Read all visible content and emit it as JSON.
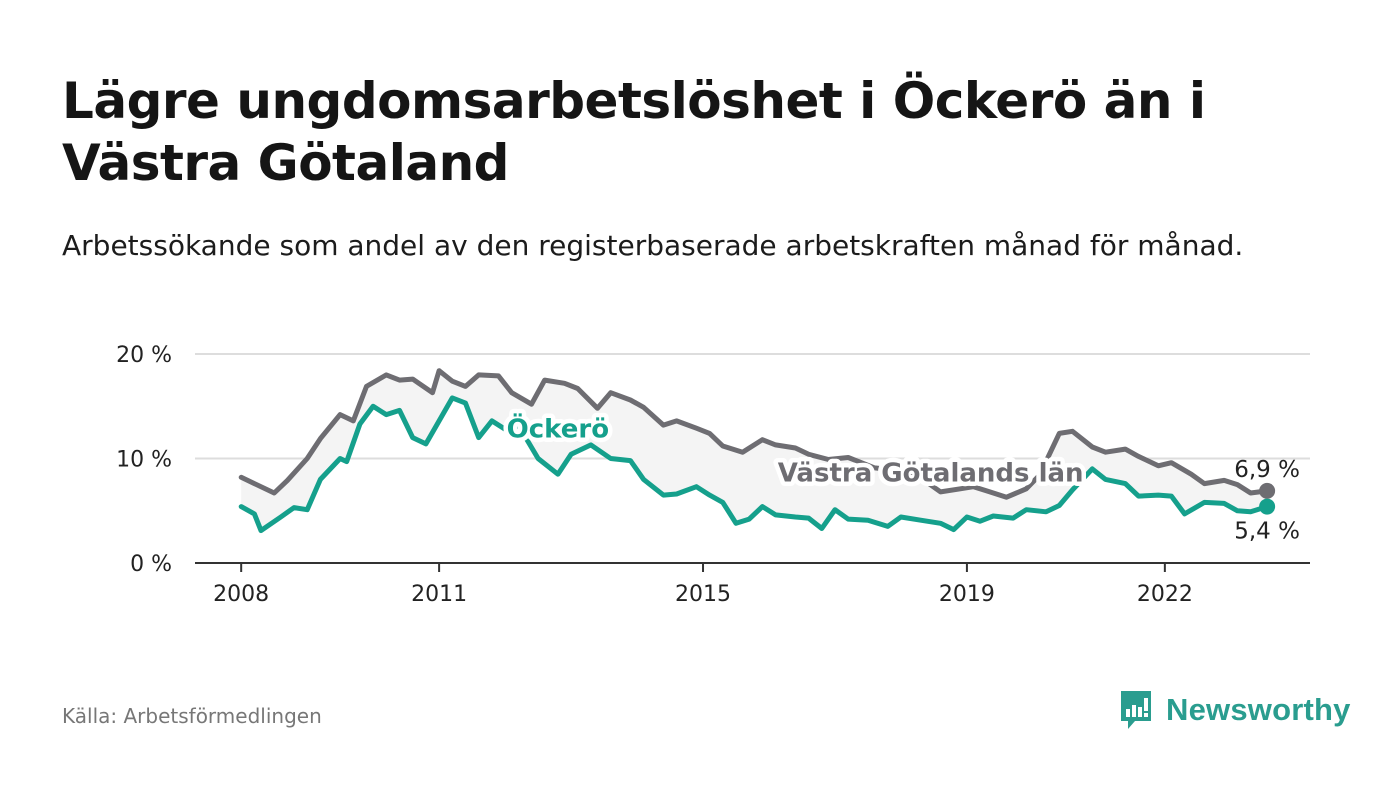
{
  "title": "Lägre ungdomsarbetslöshet i Öckerö än i Västra Götaland",
  "subtitle": "Arbetssökande som andel av den registerbaserade arbetskraften månad för månad.",
  "source": "Källa: Arbetsförmedlingen",
  "brand": "Newsworthy",
  "colors": {
    "region": "#6e6d72",
    "local": "#15a08c",
    "grid": "#dddddd",
    "band": "#f1f1f1",
    "brand": "#2a9d8f"
  },
  "chart_data": {
    "type": "line",
    "title": "Lägre ungdomsarbetslöshet i Öckerö än i Västra Götaland",
    "ylim": [
      0,
      20
    ],
    "xlim": [
      2007.3,
      2024.2
    ],
    "y_ticks": [
      0,
      10,
      20
    ],
    "y_tick_labels": [
      "0 %",
      "10 %",
      "20 %"
    ],
    "x_ticks": [
      2008,
      2011,
      2015,
      2019,
      2022
    ],
    "x_tick_labels": [
      "2008",
      "2011",
      "2015",
      "2019",
      "2022"
    ],
    "grid": true,
    "series": [
      {
        "name": "Västra Götalands län",
        "color": "#6e6d72",
        "end_label": "6,9 %",
        "x": [
          2008.0,
          2008.2,
          2008.5,
          2008.7,
          2009.0,
          2009.2,
          2009.5,
          2009.7,
          2009.9,
          2010.2,
          2010.4,
          2010.6,
          2010.9,
          2011.0,
          2011.2,
          2011.4,
          2011.6,
          2011.9,
          2012.1,
          2012.4,
          2012.6,
          2012.9,
          2013.1,
          2013.4,
          2013.6,
          2013.9,
          2014.1,
          2014.4,
          2014.6,
          2014.9,
          2015.1,
          2015.3,
          2015.6,
          2015.9,
          2016.1,
          2016.4,
          2016.6,
          2016.9,
          2017.2,
          2017.4,
          2017.6,
          2017.9,
          2018.1,
          2018.4,
          2018.6,
          2018.9,
          2019.1,
          2019.3,
          2019.6,
          2019.9,
          2020.1,
          2020.4,
          2020.6,
          2020.9,
          2021.1,
          2021.4,
          2021.6,
          2021.9,
          2022.1,
          2022.4,
          2022.6,
          2022.9,
          2023.1,
          2023.3,
          2023.55
        ],
        "values": [
          8.2,
          7.6,
          6.7,
          7.9,
          10.0,
          11.9,
          14.2,
          13.6,
          16.9,
          18.0,
          17.5,
          17.6,
          16.3,
          18.4,
          17.4,
          16.9,
          18.0,
          17.9,
          16.3,
          15.2,
          17.5,
          17.2,
          16.7,
          14.8,
          16.3,
          15.6,
          14.9,
          13.2,
          13.6,
          12.9,
          12.4,
          11.2,
          10.6,
          11.8,
          11.3,
          11.0,
          10.4,
          9.9,
          10.1,
          9.6,
          9.1,
          8.9,
          8.4,
          7.7,
          6.8,
          7.1,
          7.3,
          6.9,
          6.3,
          7.1,
          8.4,
          12.4,
          12.6,
          11.1,
          10.6,
          10.9,
          10.2,
          9.3,
          9.6,
          8.5,
          7.6,
          7.9,
          7.5,
          6.7,
          6.9
        ]
      },
      {
        "name": "Öckerö",
        "color": "#15a08c",
        "end_label": "5,4 %",
        "x": [
          2008.0,
          2008.2,
          2008.3,
          2008.6,
          2008.8,
          2009.0,
          2009.2,
          2009.5,
          2009.6,
          2009.8,
          2010.0,
          2010.2,
          2010.4,
          2010.6,
          2010.8,
          2011.0,
          2011.2,
          2011.4,
          2011.6,
          2011.8,
          2012.0,
          2012.2,
          2012.5,
          2012.8,
          2013.0,
          2013.3,
          2013.6,
          2013.9,
          2014.1,
          2014.4,
          2014.6,
          2014.9,
          2015.1,
          2015.3,
          2015.5,
          2015.7,
          2015.9,
          2016.1,
          2016.4,
          2016.6,
          2016.8,
          2017.0,
          2017.2,
          2017.5,
          2017.8,
          2018.0,
          2018.3,
          2018.6,
          2018.8,
          2019.0,
          2019.2,
          2019.4,
          2019.7,
          2019.9,
          2020.2,
          2020.4,
          2020.6,
          2020.9,
          2021.1,
          2021.4,
          2021.6,
          2021.9,
          2022.1,
          2022.3,
          2022.6,
          2022.9,
          2023.1,
          2023.3,
          2023.55
        ],
        "values": [
          5.4,
          4.7,
          3.1,
          4.4,
          5.3,
          5.1,
          8.0,
          10.0,
          9.7,
          13.3,
          15.0,
          14.2,
          14.6,
          12.0,
          11.4,
          13.6,
          15.8,
          15.3,
          12.0,
          13.6,
          12.8,
          13.2,
          10.0,
          8.5,
          10.4,
          11.3,
          10.0,
          9.8,
          8.0,
          6.5,
          6.6,
          7.3,
          6.5,
          5.8,
          3.8,
          4.2,
          5.4,
          4.6,
          4.4,
          4.3,
          3.3,
          5.1,
          4.2,
          4.1,
          3.5,
          4.4,
          4.1,
          3.8,
          3.2,
          4.4,
          4.0,
          4.5,
          4.3,
          5.1,
          4.9,
          5.5,
          7.0,
          9.0,
          8.0,
          7.6,
          6.4,
          6.5,
          6.4,
          4.7,
          5.8,
          5.7,
          5.0,
          4.9,
          5.4
        ]
      }
    ],
    "annotations": [
      {
        "text": "Öckerö",
        "series": "Öckerö"
      },
      {
        "text": "Västra Götalands län",
        "series": "Västra Götalands län"
      }
    ]
  }
}
